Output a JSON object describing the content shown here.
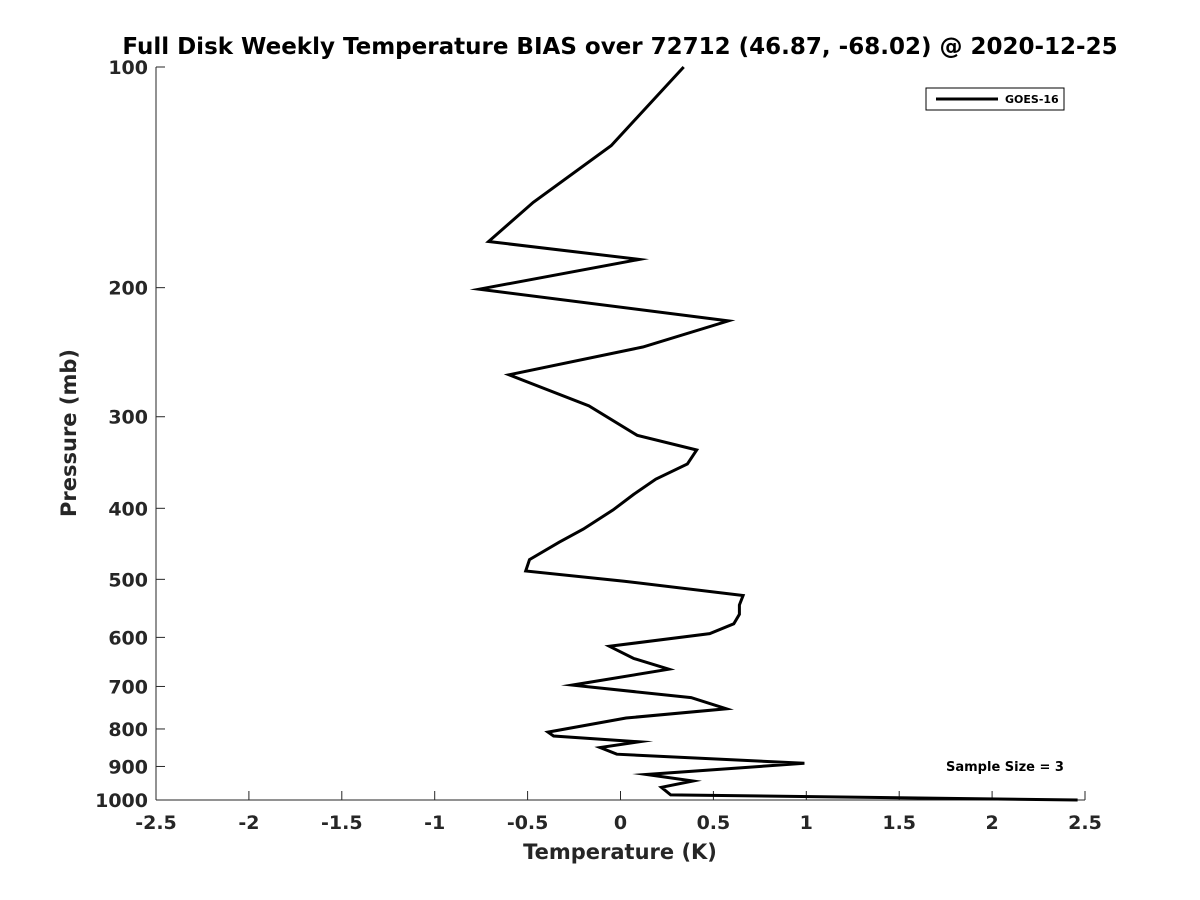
{
  "chart_data": {
    "type": "line",
    "title": "Full Disk Weekly Temperature BIAS over 72712 (46.87, -68.02) @ 2020-12-25",
    "xlabel": "Temperature (K)",
    "ylabel": "Pressure (mb)",
    "xlim": [
      -2.5,
      2.5
    ],
    "ylim": [
      1000,
      100
    ],
    "y_scale": "log",
    "x_ticks": [
      "-2.5",
      "-2",
      "-1.5",
      "-1",
      "-0.5",
      "0",
      "0.5",
      "1",
      "1.5",
      "2",
      "2.5"
    ],
    "x_tick_values": [
      -2.5,
      -2,
      -1.5,
      -1,
      -0.5,
      0,
      0.5,
      1,
      1.5,
      2,
      2.5
    ],
    "y_ticks": [
      "100",
      "200",
      "300",
      "400",
      "500",
      "600",
      "700",
      "800",
      "900",
      "1000"
    ],
    "y_tick_values": [
      100,
      200,
      300,
      400,
      500,
      600,
      700,
      800,
      900,
      1000
    ],
    "grid": false,
    "legend_position": "top-right",
    "series": [
      {
        "name": "GOES-16",
        "color": "#000000",
        "x": [
          0.34,
          -0.05,
          -0.47,
          -0.71,
          0.1,
          -0.76,
          0.58,
          0.12,
          -0.6,
          -0.17,
          0.09,
          0.41,
          0.36,
          0.19,
          0.07,
          -0.04,
          -0.2,
          -0.33,
          -0.49,
          -0.51,
          0.02,
          0.66,
          0.64,
          0.64,
          0.61,
          0.48,
          -0.06,
          0.07,
          0.26,
          -0.26,
          0.38,
          0.57,
          0.03,
          -0.39,
          -0.36,
          0.1,
          -0.11,
          -0.02,
          0.99,
          0.14,
          0.39,
          0.22,
          0.27,
          2.46
        ],
        "y": [
          100,
          128,
          153,
          173,
          183,
          201,
          222,
          241,
          263,
          290,
          318,
          333,
          348,
          365,
          383,
          402,
          427,
          445,
          470,
          487,
          503,
          526,
          542,
          558,
          575,
          593,
          617,
          641,
          663,
          697,
          725,
          751,
          773,
          808,
          818,
          833,
          848,
          866,
          891,
          923,
          942,
          961,
          984,
          1000
        ]
      }
    ],
    "annotations": [
      {
        "text": "Sample Size = 3"
      }
    ]
  }
}
